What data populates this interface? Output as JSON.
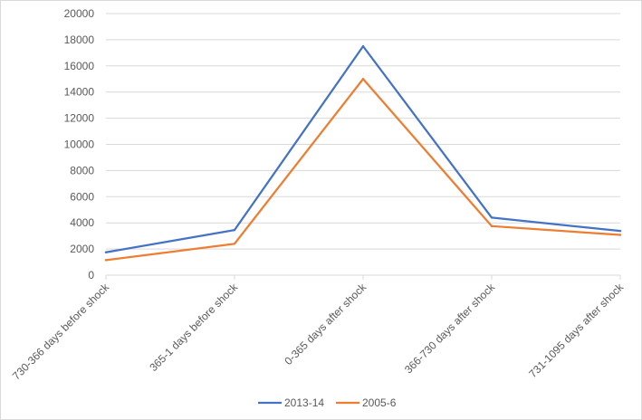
{
  "chart_data": {
    "type": "line",
    "title": "",
    "xlabel": "",
    "ylabel": "",
    "categories": [
      "730-366 days before shock",
      "365-1 days before shock",
      "0-365 days after shock",
      "366-730 days after shock",
      "731-1095 days after shock"
    ],
    "ylim": [
      0,
      20000
    ],
    "yticks": [
      0,
      2000,
      4000,
      6000,
      8000,
      10000,
      12000,
      14000,
      16000,
      18000,
      20000
    ],
    "grid": true,
    "legend_position": "bottom",
    "series": [
      {
        "name": "2013-14",
        "color": "#4472c4",
        "values": [
          1750,
          3450,
          17500,
          4400,
          3380
        ]
      },
      {
        "name": "2005-6",
        "color": "#ed7d31",
        "values": [
          1150,
          2400,
          15000,
          3750,
          3080
        ]
      }
    ]
  }
}
